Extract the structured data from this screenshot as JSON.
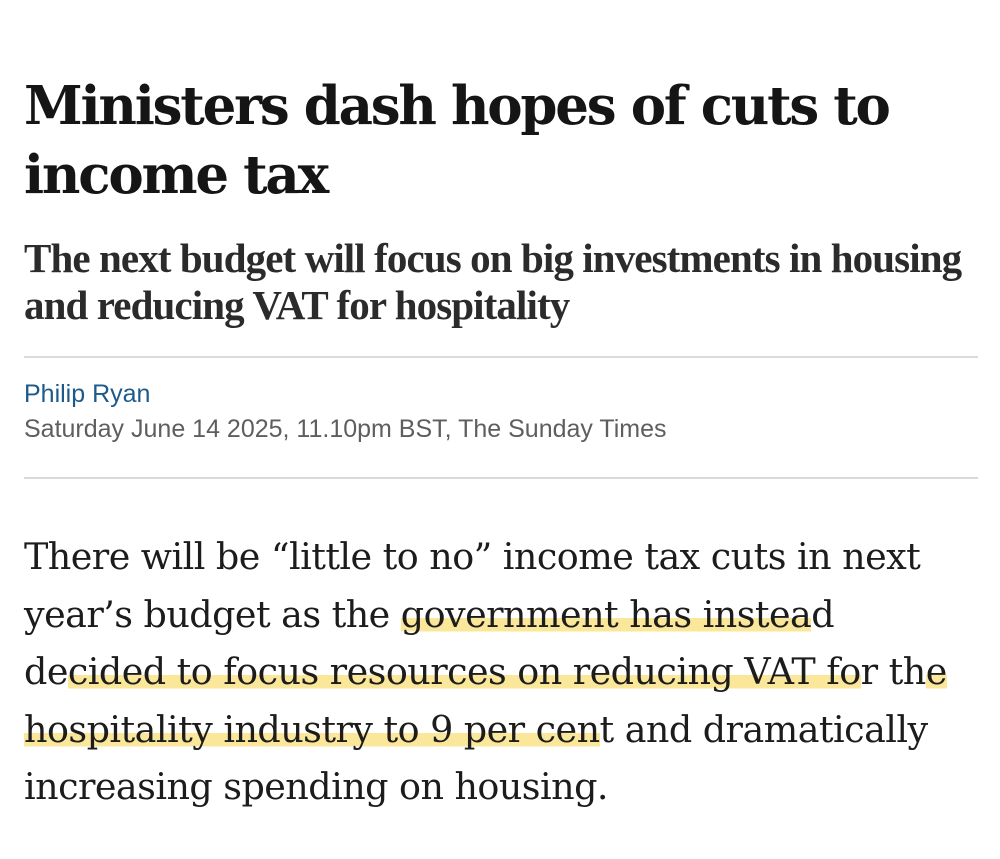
{
  "article": {
    "headline": "Ministers dash hopes of cuts to income tax",
    "standfirst": "The next budget will focus on big investments in housing and reducing VAT for hospitality",
    "author": "Philip Ryan",
    "dateline": "Saturday June 14 2025, 11.10pm BST, The Sunday Times",
    "body": {
      "before": "There will be “little to no” income tax cuts in next year’s budget as the ",
      "highlight_1": "government has instea",
      "mid_1": "d de",
      "highlight_2": "cided to focus resources on reducing VAT fo",
      "mid_2": "r th",
      "highlight_3": "e hospitality industry to 9 per cen",
      "after": "t and dramatically increasing spending on housing."
    }
  },
  "colors": {
    "author_link": "#1d5a8a",
    "highlight": "#fbe79a",
    "divider": "#dadada"
  }
}
